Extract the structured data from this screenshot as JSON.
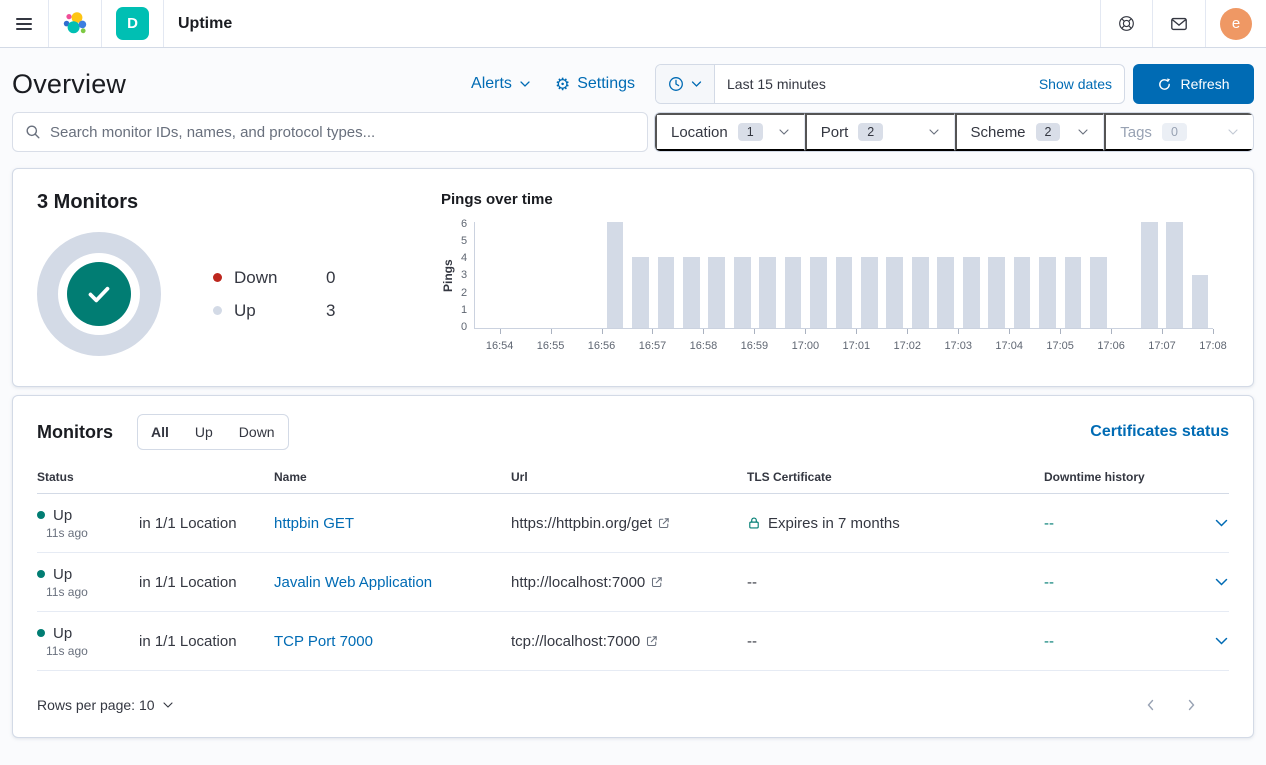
{
  "colors": {
    "primary": "#006BB4",
    "success": "#017D73",
    "danger": "#BD271E",
    "border": "#D3DAE6",
    "bar_fill": "#D3DAE6",
    "badge_teal": "#00BFB3",
    "avatar_bg": "#EF9864",
    "page_bg": "#FAFBFD",
    "text": "#343741"
  },
  "topbar": {
    "app_title": "Uptime",
    "deployment_badge": "D",
    "avatar_initial": "e"
  },
  "header": {
    "title": "Overview",
    "alerts_label": "Alerts",
    "settings_label": "Settings",
    "gear_glyph": "⚙",
    "time_range": "Last 15 minutes",
    "show_dates_label": "Show dates",
    "refresh_label": "Refresh"
  },
  "search": {
    "placeholder": "Search monitor IDs, names, and protocol types..."
  },
  "filters": [
    {
      "label": "Location",
      "count": "1",
      "disabled": false
    },
    {
      "label": "Port",
      "count": "2",
      "disabled": false
    },
    {
      "label": "Scheme",
      "count": "2",
      "disabled": false
    },
    {
      "label": "Tags",
      "count": "0",
      "disabled": true
    }
  ],
  "summary": {
    "title": "3 Monitors",
    "legend": [
      {
        "label": "Down",
        "value": "0"
      },
      {
        "label": "Up",
        "value": "3"
      }
    ]
  },
  "chart_data": {
    "type": "bar",
    "title": "Pings over time",
    "ylabel": "Pings",
    "xlabel": "",
    "ylim": [
      0,
      6
    ],
    "y_ticks": [
      0,
      1,
      2,
      3,
      4,
      5,
      6
    ],
    "interval": "30s",
    "bar_color": "#D3DAE6",
    "grid": false,
    "x": [
      "16:53:30",
      "16:54:00",
      "16:54:30",
      "16:55:00",
      "16:55:30",
      "16:56:00",
      "16:56:30",
      "16:57:00",
      "16:57:30",
      "16:58:00",
      "16:58:30",
      "16:59:00",
      "16:59:30",
      "17:00:00",
      "17:00:30",
      "17:01:00",
      "17:01:30",
      "17:02:00",
      "17:02:30",
      "17:03:00",
      "17:03:30",
      "17:04:00",
      "17:04:30",
      "17:05:00",
      "17:05:30",
      "17:06:00",
      "17:06:30",
      "17:07:00",
      "17:07:30"
    ],
    "values": [
      0,
      0,
      0,
      0,
      0,
      6,
      4,
      4,
      4,
      4,
      4,
      4,
      4,
      4,
      4,
      4,
      4,
      4,
      4,
      4,
      4,
      4,
      4,
      4,
      4,
      0,
      6,
      6,
      3
    ],
    "x_tick_labels": [
      "16:54",
      "16:55",
      "16:56",
      "16:57",
      "16:58",
      "16:59",
      "17:00",
      "17:01",
      "17:02",
      "17:03",
      "17:04",
      "17:05",
      "17:06",
      "17:07",
      "17:08"
    ]
  },
  "monitors": {
    "heading": "Monitors",
    "tabs": {
      "all": "All",
      "up": "Up",
      "down": "Down"
    },
    "active_tab": "All",
    "certificates_link": "Certificates status",
    "columns": {
      "status": "Status",
      "name": "Name",
      "url": "Url",
      "tls": "TLS Certificate",
      "downtime": "Downtime history"
    },
    "rows": [
      {
        "status": "Up",
        "ago": "11s ago",
        "location": "in 1/1 Location",
        "name": "httpbin GET",
        "url": "https://httpbin.org/get",
        "tls": "Expires in 7 months",
        "tls_lock": true,
        "downtime": "--"
      },
      {
        "status": "Up",
        "ago": "11s ago",
        "location": "in 1/1 Location",
        "name": "Javalin Web Application",
        "url": "http://localhost:7000",
        "tls": "--",
        "tls_lock": false,
        "downtime": "--"
      },
      {
        "status": "Up",
        "ago": "11s ago",
        "location": "in 1/1 Location",
        "name": "TCP Port 7000",
        "url": "tcp://localhost:7000",
        "tls": "--",
        "tls_lock": false,
        "downtime": "--"
      }
    ],
    "rows_per_page_label": "Rows per page: 10"
  }
}
